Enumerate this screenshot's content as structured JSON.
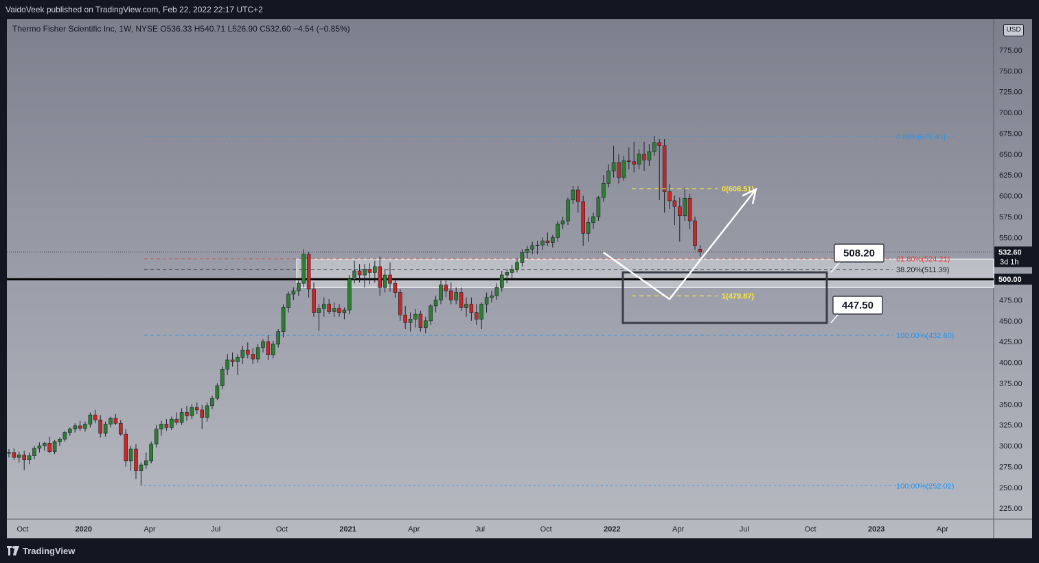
{
  "header": {
    "publisher": "VaidoVeek published on TradingView.com, Feb 22, 2022 22:17 UTC+2"
  },
  "legend": {
    "text": "Thermo Fisher Scientific Inc, 1W, NYSE  O536.33  H540.71  L526.90  C532.60  −4.54 (−0.85%)"
  },
  "currency": "USD",
  "footer": {
    "brand": "TradingView"
  },
  "colors": {
    "up": "#2e7d32",
    "down": "#c62828",
    "fib": "#2196f3",
    "fib_red": "#e53935",
    "fib_yellow": "#ffeb3b",
    "annotation": "#ffffff",
    "support_line": "#000000"
  },
  "chart_data": {
    "type": "candlestick",
    "title": "Thermo Fisher Scientific Inc, 1W, NYSE",
    "ylim": [
      212,
      812
    ],
    "y_ticks": [
      "225.00",
      "250.00",
      "275.00",
      "300.00",
      "325.00",
      "350.00",
      "375.00",
      "400.00",
      "425.00",
      "450.00",
      "475.00",
      "500.00",
      "525.00",
      "550.00",
      "575.00",
      "600.00",
      "625.00",
      "650.00",
      "675.00",
      "700.00",
      "725.00",
      "750.00",
      "775.00"
    ],
    "x_ticks": [
      {
        "label": "Oct",
        "bold": false,
        "week": 0
      },
      {
        "label": "2020",
        "bold": true,
        "week": 12
      },
      {
        "label": "Apr",
        "bold": false,
        "week": 25
      },
      {
        "label": "Jul",
        "bold": false,
        "week": 38
      },
      {
        "label": "Oct",
        "bold": false,
        "week": 51
      },
      {
        "label": "2021",
        "bold": true,
        "week": 64
      },
      {
        "label": "Apr",
        "bold": false,
        "week": 77
      },
      {
        "label": "Jul",
        "bold": false,
        "week": 90
      },
      {
        "label": "Oct",
        "bold": false,
        "week": 103
      },
      {
        "label": "2022",
        "bold": true,
        "week": 116
      },
      {
        "label": "Apr",
        "bold": false,
        "week": 129
      },
      {
        "label": "Jul",
        "bold": false,
        "week": 142
      },
      {
        "label": "Oct",
        "bold": false,
        "week": 155
      },
      {
        "label": "2023",
        "bold": true,
        "week": 168
      },
      {
        "label": "Apr",
        "bold": false,
        "week": 181
      }
    ],
    "last_price": {
      "value": 532.6,
      "label": "532.60",
      "countdown": "3d 1h"
    },
    "price_labels": [
      {
        "value": 500,
        "label": "500.00"
      }
    ],
    "candles": [
      [
        291,
        296,
        286,
        292
      ],
      [
        292,
        297,
        283,
        286
      ],
      [
        286,
        293,
        280,
        289
      ],
      [
        289,
        294,
        271,
        283
      ],
      [
        283,
        292,
        278,
        288
      ],
      [
        288,
        300,
        284,
        297
      ],
      [
        297,
        304,
        292,
        300
      ],
      [
        300,
        305,
        294,
        303
      ],
      [
        303,
        311,
        291,
        293
      ],
      [
        293,
        307,
        290,
        305
      ],
      [
        305,
        310,
        300,
        308
      ],
      [
        308,
        318,
        305,
        316
      ],
      [
        316,
        322,
        312,
        320
      ],
      [
        320,
        327,
        316,
        324
      ],
      [
        324,
        330,
        318,
        321
      ],
      [
        321,
        329,
        317,
        326
      ],
      [
        326,
        340,
        322,
        337
      ],
      [
        337,
        343,
        327,
        331
      ],
      [
        331,
        337,
        310,
        315
      ],
      [
        315,
        329,
        311,
        326
      ],
      [
        326,
        335,
        322,
        333
      ],
      [
        333,
        338,
        325,
        327
      ],
      [
        327,
        331,
        312,
        314
      ],
      [
        314,
        320,
        275,
        282
      ],
      [
        282,
        300,
        270,
        296
      ],
      [
        296,
        302,
        260,
        270
      ],
      [
        270,
        280,
        252,
        277
      ],
      [
        277,
        292,
        272,
        282
      ],
      [
        282,
        305,
        279,
        302
      ],
      [
        302,
        325,
        298,
        320
      ],
      [
        320,
        330,
        312,
        326
      ],
      [
        326,
        332,
        318,
        322
      ],
      [
        322,
        335,
        319,
        332
      ],
      [
        332,
        340,
        325,
        328
      ],
      [
        328,
        345,
        325,
        340
      ],
      [
        340,
        348,
        330,
        336
      ],
      [
        336,
        350,
        332,
        346
      ],
      [
        346,
        352,
        338,
        343
      ],
      [
        343,
        349,
        320,
        334
      ],
      [
        334,
        352,
        329,
        348
      ],
      [
        348,
        360,
        344,
        357
      ],
      [
        357,
        375,
        355,
        372
      ],
      [
        372,
        395,
        368,
        392
      ],
      [
        392,
        410,
        385,
        403
      ],
      [
        403,
        412,
        395,
        401
      ],
      [
        401,
        410,
        385,
        406
      ],
      [
        406,
        420,
        398,
        415
      ],
      [
        415,
        424,
        405,
        410
      ],
      [
        410,
        417,
        398,
        404
      ],
      [
        404,
        422,
        400,
        418
      ],
      [
        418,
        428,
        412,
        425
      ],
      [
        425,
        433,
        403,
        409
      ],
      [
        409,
        426,
        405,
        422
      ],
      [
        422,
        440,
        418,
        437
      ],
      [
        437,
        470,
        430,
        466
      ],
      [
        466,
        485,
        460,
        482
      ],
      [
        482,
        490,
        475,
        486
      ],
      [
        486,
        498,
        480,
        495
      ],
      [
        495,
        536,
        490,
        530
      ],
      [
        530,
        533,
        478,
        488
      ],
      [
        488,
        496,
        455,
        460
      ],
      [
        460,
        470,
        438,
        465
      ],
      [
        465,
        478,
        455,
        470
      ],
      [
        470,
        476,
        458,
        461
      ],
      [
        461,
        472,
        455,
        465
      ],
      [
        465,
        470,
        455,
        460
      ],
      [
        460,
        466,
        452,
        463
      ],
      [
        463,
        505,
        458,
        500
      ],
      [
        500,
        522,
        495,
        510
      ],
      [
        510,
        518,
        496,
        505
      ],
      [
        505,
        518,
        490,
        512
      ],
      [
        512,
        519,
        494,
        508
      ],
      [
        508,
        522,
        496,
        515
      ],
      [
        515,
        527,
        480,
        490
      ],
      [
        490,
        512,
        484,
        505
      ],
      [
        505,
        520,
        485,
        495
      ],
      [
        495,
        500,
        478,
        484
      ],
      [
        484,
        488,
        450,
        457
      ],
      [
        457,
        468,
        440,
        448
      ],
      [
        448,
        460,
        437,
        452
      ],
      [
        452,
        464,
        442,
        458
      ],
      [
        458,
        462,
        437,
        442
      ],
      [
        442,
        455,
        435,
        450
      ],
      [
        450,
        470,
        445,
        468
      ],
      [
        468,
        480,
        460,
        475
      ],
      [
        475,
        498,
        470,
        493
      ],
      [
        493,
        498,
        478,
        486
      ],
      [
        486,
        496,
        470,
        475
      ],
      [
        475,
        490,
        470,
        484
      ],
      [
        484,
        490,
        462,
        466
      ],
      [
        466,
        478,
        455,
        470
      ],
      [
        470,
        478,
        450,
        460
      ],
      [
        460,
        470,
        445,
        452
      ],
      [
        452,
        472,
        440,
        470
      ],
      [
        470,
        484,
        460,
        478
      ],
      [
        478,
        486,
        472,
        480
      ],
      [
        480,
        495,
        475,
        490
      ],
      [
        490,
        510,
        485,
        505
      ],
      [
        505,
        512,
        495,
        508
      ],
      [
        508,
        517,
        500,
        512
      ],
      [
        512,
        525,
        508,
        520
      ],
      [
        520,
        536,
        515,
        532
      ],
      [
        532,
        540,
        525,
        536
      ],
      [
        536,
        545,
        530,
        540
      ],
      [
        540,
        546,
        530,
        541
      ],
      [
        541,
        550,
        535,
        546
      ],
      [
        546,
        556,
        540,
        544
      ],
      [
        544,
        553,
        538,
        550
      ],
      [
        550,
        570,
        545,
        566
      ],
      [
        566,
        575,
        560,
        570
      ],
      [
        570,
        598,
        565,
        595
      ],
      [
        595,
        612,
        590,
        607
      ],
      [
        607,
        612,
        580,
        593
      ],
      [
        593,
        600,
        540,
        555
      ],
      [
        555,
        574,
        545,
        568
      ],
      [
        568,
        580,
        560,
        575
      ],
      [
        575,
        600,
        570,
        598
      ],
      [
        598,
        625,
        593,
        615
      ],
      [
        615,
        638,
        610,
        630
      ],
      [
        630,
        660,
        622,
        640
      ],
      [
        640,
        650,
        615,
        622
      ],
      [
        622,
        648,
        618,
        642
      ],
      [
        642,
        658,
        632,
        641
      ],
      [
        641,
        665,
        628,
        638
      ],
      [
        638,
        656,
        632,
        650
      ],
      [
        650,
        665,
        630,
        643
      ],
      [
        643,
        662,
        636,
        653
      ],
      [
        653,
        672,
        648,
        664
      ],
      [
        664,
        668,
        595,
        660
      ],
      [
        660,
        668,
        580,
        605
      ],
      [
        605,
        614,
        584,
        594
      ],
      [
        594,
        600,
        565,
        587
      ],
      [
        587,
        598,
        545,
        576
      ],
      [
        576,
        610,
        570,
        597
      ],
      [
        597,
        602,
        560,
        570
      ],
      [
        570,
        575,
        535,
        540
      ],
      [
        536,
        541,
        527,
        533
      ]
    ],
    "fib_retracement_1": {
      "color": "blue",
      "levels": [
        {
          "value": 671.41,
          "label": "0.00%(671.41)"
        },
        {
          "value": 252.02,
          "label": "100.00%(252.02)"
        }
      ]
    },
    "fib_retracement_2": {
      "levels": [
        {
          "value": 524.21,
          "label": "61.80%(524.21)",
          "color": "red"
        },
        {
          "value": 511.39,
          "label": "38.20%(511.39)",
          "color": "black"
        },
        {
          "value": 432.6,
          "label": "100.00%(432.60)",
          "color": "blue"
        }
      ]
    },
    "fib_extension": {
      "color": "yellow",
      "levels": [
        {
          "value": 608.51,
          "label": "0(608.51)"
        },
        {
          "value": 479.87,
          "label": "1(479.87)"
        }
      ]
    },
    "support_line": {
      "value": 500
    },
    "support_zone": {
      "top": 524,
      "bottom": 490
    },
    "target_box": {
      "top": 508.2,
      "bottom": 447.5
    },
    "annotations": [
      {
        "label": "508.20",
        "value": 508.2
      },
      {
        "label": "447.50",
        "value": 447.5
      }
    ],
    "projection": {
      "points": [
        [
          532,
          532
        ],
        [
          545,
          476
        ],
        [
          562,
          608
        ]
      ],
      "arrow": true
    }
  }
}
